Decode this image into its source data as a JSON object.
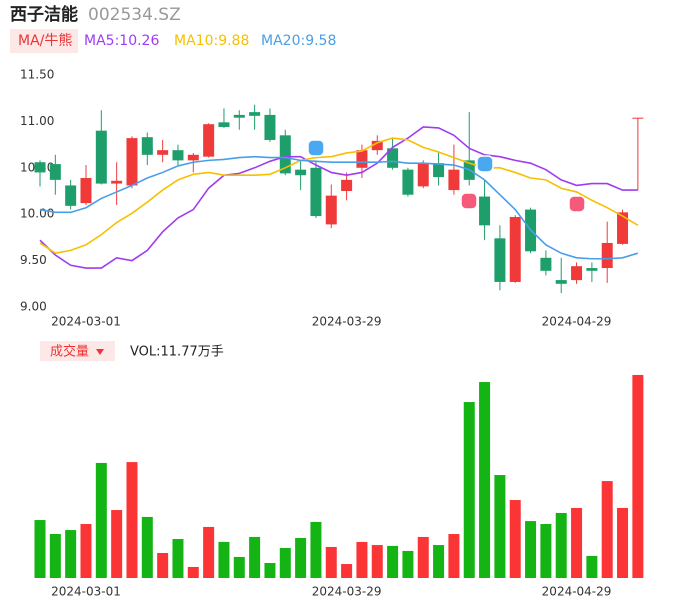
{
  "chart_data": {
    "type": "candlestick",
    "title": "西子洁能",
    "subtitle": "002534.SZ",
    "ma_tag": "MA/牛熊",
    "volume_tag": "成交量",
    "volume_label": "VOL:11.77万手",
    "categories": [
      null,
      null,
      null,
      "2024-03-01",
      null,
      null,
      null,
      null,
      null,
      null,
      null,
      null,
      null,
      null,
      null,
      null,
      null,
      null,
      null,
      null,
      "2024-03-29",
      null,
      null,
      null,
      null,
      null,
      null,
      null,
      null,
      null,
      null,
      null,
      null,
      null,
      null,
      "2024-04-29",
      null,
      null,
      null,
      null
    ],
    "open": [
      10.56,
      10.54,
      10.31,
      10.12,
      10.9,
      10.33,
      10.31,
      10.83,
      10.64,
      10.69,
      10.58,
      10.62,
      10.99,
      11.07,
      11.1,
      11.07,
      10.85,
      10.48,
      10.5,
      9.89,
      10.25,
      10.5,
      10.69,
      10.71,
      10.48,
      10.3,
      10.55,
      10.26,
      10.58,
      10.19,
      9.74,
      9.27,
      10.05,
      9.53,
      9.29,
      9.29,
      9.42,
      9.42,
      9.68,
      11.03
    ],
    "high": [
      10.58,
      10.64,
      10.37,
      10.53,
      11.12,
      10.56,
      10.84,
      10.88,
      10.8,
      10.75,
      10.66,
      10.98,
      11.14,
      11.12,
      11.18,
      11.14,
      10.91,
      10.58,
      10.58,
      10.32,
      10.45,
      10.75,
      10.85,
      10.82,
      10.5,
      10.58,
      10.67,
      10.75,
      11.1,
      10.37,
      9.88,
      9.99,
      10.07,
      9.61,
      9.53,
      9.48,
      9.48,
      9.92,
      10.05,
      11.04
    ],
    "low": [
      10.3,
      10.21,
      10.05,
      10.1,
      10.32,
      10.1,
      10.28,
      10.53,
      10.56,
      10.53,
      10.45,
      10.61,
      10.93,
      10.91,
      10.91,
      10.78,
      10.42,
      10.26,
      9.96,
      9.85,
      10.15,
      10.39,
      10.64,
      10.48,
      10.19,
      10.28,
      10.31,
      10.21,
      10.31,
      9.72,
      9.18,
      9.26,
      9.58,
      9.34,
      9.15,
      9.25,
      9.27,
      9.26,
      9.67,
      10.26
    ],
    "close": [
      10.45,
      10.37,
      10.09,
      10.39,
      10.33,
      10.36,
      10.82,
      10.64,
      10.69,
      10.58,
      10.64,
      10.97,
      10.94,
      11.04,
      11.06,
      10.8,
      10.44,
      10.42,
      9.98,
      10.2,
      10.37,
      10.69,
      10.79,
      10.5,
      10.21,
      10.55,
      10.4,
      10.48,
      10.37,
      9.88,
      9.27,
      9.97,
      9.6,
      9.39,
      9.25,
      9.44,
      9.39,
      9.69,
      10.02,
      11.04
    ],
    "up_color": "#f03a3a",
    "down_color": "#1e9e6a",
    "volume_up_color": "#fb3535",
    "volume_down_color": "#14b414",
    "series": [
      {
        "name": "MA5:10.26",
        "color": "#a03cf0",
        "values": [
          9.72,
          9.56,
          9.45,
          9.42,
          9.42,
          9.53,
          9.5,
          9.61,
          9.81,
          9.96,
          10.05,
          10.28,
          10.42,
          10.44,
          10.5,
          10.57,
          10.62,
          10.62,
          10.53,
          10.45,
          10.42,
          10.45,
          10.55,
          10.72,
          10.82,
          10.94,
          10.93,
          10.85,
          10.71,
          10.64,
          10.62,
          10.58,
          10.55,
          10.48,
          10.37,
          10.31,
          10.33,
          10.33,
          10.26,
          10.26
        ]
      },
      {
        "name": "MA10:9.88",
        "color": "#f5c000",
        "values": [
          9.69,
          9.58,
          9.61,
          9.67,
          9.78,
          9.91,
          10.01,
          10.13,
          10.26,
          10.37,
          10.43,
          10.45,
          10.42,
          10.42,
          10.42,
          10.43,
          10.5,
          10.58,
          10.61,
          10.62,
          10.66,
          10.68,
          10.77,
          10.82,
          10.8,
          10.72,
          10.67,
          10.61,
          10.55,
          10.5,
          10.5,
          10.45,
          10.39,
          10.37,
          10.28,
          10.24,
          10.15,
          10.07,
          9.98,
          9.88
        ]
      },
      {
        "name": "MA20:9.58",
        "color": "#4a9ee8",
        "values": [
          10.05,
          10.02,
          10.02,
          10.07,
          10.17,
          10.24,
          10.31,
          10.39,
          10.45,
          10.52,
          10.56,
          10.58,
          10.59,
          10.61,
          10.62,
          10.61,
          10.61,
          10.58,
          10.57,
          10.56,
          10.56,
          10.56,
          10.56,
          10.57,
          10.55,
          10.55,
          10.54,
          10.53,
          10.48,
          10.37,
          10.21,
          10.05,
          9.83,
          9.67,
          9.58,
          9.53,
          9.52,
          9.52,
          9.53,
          9.58
        ]
      }
    ],
    "volume": [
      3.36,
      2.55,
      2.78,
      3.13,
      6.67,
      3.94,
      6.72,
      3.54,
      1.45,
      2.26,
      0.64,
      2.96,
      2.09,
      1.22,
      2.38,
      0.87,
      1.74,
      2.32,
      3.25,
      1.8,
      0.81,
      2.09,
      1.91,
      1.86,
      1.57,
      2.38,
      1.91,
      2.55,
      10.2,
      11.36,
      5.97,
      4.52,
      3.3,
      3.13,
      3.77,
      4.06,
      1.28,
      5.62,
      4.06,
      11.77
    ],
    "ylim": [
      9.0,
      11.5
    ],
    "yticks": [
      {
        "value": 9.0,
        "label": "9.00"
      },
      {
        "value": 9.5,
        "label": "9.50"
      },
      {
        "value": 10.0,
        "label": "10.00"
      },
      {
        "value": 10.5,
        "label": "10.50"
      },
      {
        "value": 11.0,
        "label": "11.00"
      },
      {
        "value": 11.5,
        "label": "11.50"
      }
    ],
    "volume_ylim": [
      0,
      12
    ]
  }
}
